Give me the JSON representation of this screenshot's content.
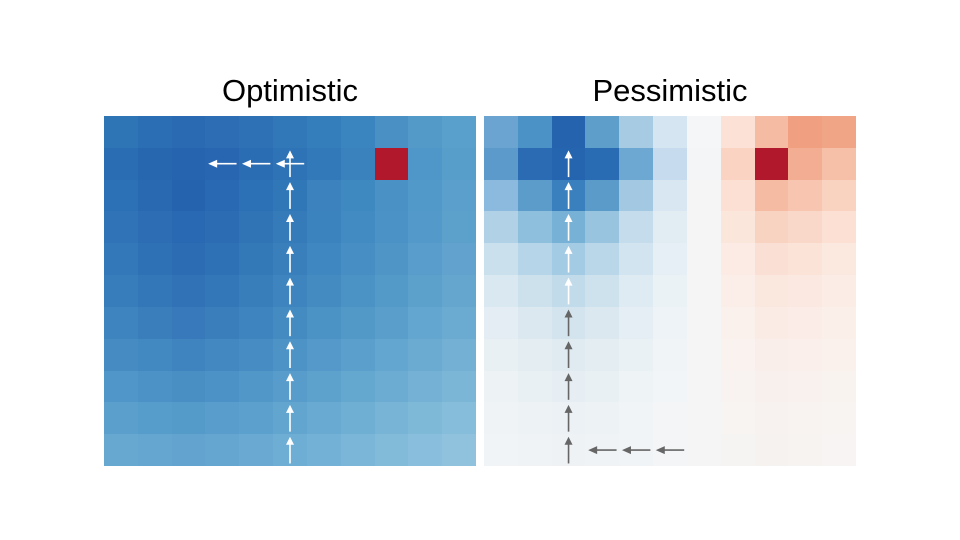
{
  "titles": {
    "left": "Optimistic",
    "right": "Pessimistic"
  },
  "grid": {
    "rows": 11,
    "cols": 11
  },
  "colors": {
    "goal": "#b2182b",
    "arrow_white": "#ffffff",
    "arrow_gray": "#666666"
  },
  "panels": [
    {
      "id": "optimistic",
      "goal_cell": [
        1,
        8
      ],
      "cells": [
        [
          "#2e75b6",
          "#2b6eb3",
          "#2a6ab2",
          "#2c6db3",
          "#2e72b5",
          "#3078b8",
          "#347ebb",
          "#3a85bf",
          "#4a90c5",
          "#539ac9",
          "#5aa0cc"
        ],
        [
          "#2a6db3",
          "#2767b0",
          "#2664af",
          "#2866b1",
          "#2b6db3",
          "#2e73b6",
          "#3279ba",
          "#3a82be",
          "#b2182b",
          "#4f97c8",
          "#589ecb"
        ],
        [
          "#2c70b5",
          "#2869b2",
          "#2563af",
          "#2968b2",
          "#2c70b5",
          "#3077b8",
          "#3b82be",
          "#3f89c1",
          "#4a91c6",
          "#5099c9",
          "#5b9fcc"
        ],
        [
          "#3073b6",
          "#2c6db3",
          "#2968b2",
          "#2c6cb3",
          "#3074b6",
          "#357bb9",
          "#3b83be",
          "#428bc2",
          "#4b93c6",
          "#5399c9",
          "#5ca0cc"
        ],
        [
          "#3378b8",
          "#2f71b5",
          "#2c6cb3",
          "#2f71b5",
          "#3379b8",
          "#397fbc",
          "#3f87c0",
          "#468ec3",
          "#4f96c7",
          "#589dcb",
          "#61a3ce"
        ],
        [
          "#387dbb",
          "#3477b8",
          "#3172b6",
          "#3477b8",
          "#387ebb",
          "#3e84be",
          "#448bc1",
          "#4b92c5",
          "#549ac9",
          "#5ca0cc",
          "#65a6cf"
        ],
        [
          "#3e84bf",
          "#3a7ebc",
          "#3779ba",
          "#3a7ebc",
          "#3e85bf",
          "#448bc2",
          "#4b92c5",
          "#5299c8",
          "#5a9fcb",
          "#63a6cf",
          "#6cabd1"
        ],
        [
          "#468cc3",
          "#4288c1",
          "#3f84bf",
          "#4388c1",
          "#478dc3",
          "#4d93c6",
          "#5499c9",
          "#5b9fcc",
          "#63a6cf",
          "#6cabd1",
          "#74b0d4"
        ],
        [
          "#5096c8",
          "#4c92c6",
          "#4a8fc4",
          "#4d92c6",
          "#5197c8",
          "#579cca",
          "#5da2cd",
          "#64a7cf",
          "#6cacd2",
          "#74b1d4",
          "#7cb6d7"
        ],
        [
          "#5ba0cd",
          "#579dcb",
          "#559bca",
          "#589dcb",
          "#5ca1cd",
          "#62a6cf",
          "#68aad1",
          "#6fafd4",
          "#77b4d6",
          "#7fb9d8",
          "#86bdda"
        ],
        [
          "#67a8d1",
          "#64a6d0",
          "#62a4cf",
          "#65a6d0",
          "#69a9d2",
          "#6eadd4",
          "#74b1d6",
          "#7bb6d8",
          "#82bada",
          "#89bedc",
          "#90c2de"
        ]
      ]
    },
    {
      "id": "pessimistic",
      "goal_cell": [
        1,
        8
      ],
      "cells": [
        [
          "#6ba4d0",
          "#4b92c7",
          "#2563af",
          "#5d9ecb",
          "#a6cbe3",
          "#d5e5f1",
          "#f5f6f8",
          "#fbe1d6",
          "#f5bca3",
          "#f0a081",
          "#f1a587"
        ],
        [
          "#5b9aca",
          "#2b6bb3",
          "#2565b0",
          "#2a6cb3",
          "#6ca8d1",
          "#c6dcee",
          "#f4f5f7",
          "#fad3c3",
          "#b2182b",
          "#f3ad92",
          "#f6c0a8"
        ],
        [
          "#8cbade",
          "#5c9ccb",
          "#3b80be",
          "#5a9bca",
          "#a3c8e2",
          "#d8e7f1",
          "#f5f5f6",
          "#fce0d4",
          "#f6bca3",
          "#f8c6b0",
          "#fad2c0"
        ],
        [
          "#b0d1e6",
          "#8ebfdd",
          "#78b1d6",
          "#99c4e0",
          "#c4dcec",
          "#e1ecf3",
          "#f5f5f6",
          "#fbe6dc",
          "#f9d3c2",
          "#fad8c9",
          "#fbe0d3"
        ],
        [
          "#cbe0ed",
          "#b6d5e8",
          "#a3cbe3",
          "#b9d7e9",
          "#d2e4ef",
          "#e6eff5",
          "#f5f5f6",
          "#fbebe4",
          "#fae0d4",
          "#fbe3d8",
          "#fbe8df"
        ],
        [
          "#dae8f1",
          "#cde1ed",
          "#c1dbea",
          "#cde2ed",
          "#deebf2",
          "#ebf2f6",
          "#f5f5f6",
          "#fbeee9",
          "#fae7de",
          "#fbe9e1",
          "#fbece6"
        ],
        [
          "#e3edf3",
          "#dbe8f0",
          "#d4e4ee",
          "#dbe8f0",
          "#e5eef4",
          "#eef3f7",
          "#f5f5f6",
          "#faf0ec",
          "#faebe5",
          "#fbece7",
          "#fbefea"
        ],
        [
          "#e9f0f4",
          "#e4edf2",
          "#dfeaf1",
          "#e4edf2",
          "#eaf1f5",
          "#f0f4f7",
          "#f5f5f6",
          "#f9f2ef",
          "#f9eee9",
          "#faefeb",
          "#faf1ed"
        ],
        [
          "#edf2f5",
          "#e9f0f4",
          "#e6eef3",
          "#e9f0f4",
          "#eef3f6",
          "#f2f5f7",
          "#f5f5f6",
          "#f8f3f1",
          "#f8f0ec",
          "#f9f1ee",
          "#f9f3f0"
        ],
        [
          "#eff3f6",
          "#edf2f5",
          "#ebf1f4",
          "#edf2f5",
          "#f0f4f6",
          "#f3f5f7",
          "#f5f5f6",
          "#f7f4f2",
          "#f7f1ef",
          "#f8f2f0",
          "#f8f4f2"
        ],
        [
          "#f0f4f6",
          "#eff3f5",
          "#eef2f5",
          "#eff3f5",
          "#f1f4f6",
          "#f3f5f7",
          "#f5f5f6",
          "#f6f4f3",
          "#f6f2f0",
          "#f7f3f1",
          "#f7f4f3"
        ]
      ],
      "arrows": [
        {
          "row": 1,
          "col": 2,
          "dir": "up",
          "color": "white"
        },
        {
          "row": 2,
          "col": 2,
          "dir": "up",
          "color": "white"
        },
        {
          "row": 3,
          "col": 2,
          "dir": "up",
          "color": "white"
        },
        {
          "row": 4,
          "col": 2,
          "dir": "up",
          "color": "white"
        },
        {
          "row": 5,
          "col": 2,
          "dir": "up",
          "color": "white"
        },
        {
          "row": 6,
          "col": 2,
          "dir": "up",
          "color": "gray"
        },
        {
          "row": 7,
          "col": 2,
          "dir": "up",
          "color": "gray"
        },
        {
          "row": 8,
          "col": 2,
          "dir": "up",
          "color": "gray"
        },
        {
          "row": 9,
          "col": 2,
          "dir": "up",
          "color": "gray"
        },
        {
          "row": 10,
          "col": 2,
          "dir": "up",
          "color": "gray"
        },
        {
          "row": 10,
          "col": 3,
          "dir": "left",
          "color": "gray"
        },
        {
          "row": 10,
          "col": 4,
          "dir": "left",
          "color": "gray"
        },
        {
          "row": 10,
          "col": 5,
          "dir": "left",
          "color": "gray"
        }
      ]
    }
  ],
  "optimistic_arrows": [
    {
      "row": 1,
      "col": 3,
      "dir": "left",
      "color": "white"
    },
    {
      "row": 1,
      "col": 4,
      "dir": "left",
      "color": "white"
    },
    {
      "row": 1,
      "col": 5,
      "dir": "left",
      "color": "white"
    },
    {
      "row": 1,
      "col": 5,
      "dir": "up",
      "color": "white"
    },
    {
      "row": 2,
      "col": 5,
      "dir": "up",
      "color": "white"
    },
    {
      "row": 3,
      "col": 5,
      "dir": "up",
      "color": "white"
    },
    {
      "row": 4,
      "col": 5,
      "dir": "up",
      "color": "white"
    },
    {
      "row": 5,
      "col": 5,
      "dir": "up",
      "color": "white"
    },
    {
      "row": 6,
      "col": 5,
      "dir": "up",
      "color": "white"
    },
    {
      "row": 7,
      "col": 5,
      "dir": "up",
      "color": "white"
    },
    {
      "row": 8,
      "col": 5,
      "dir": "up",
      "color": "white"
    },
    {
      "row": 9,
      "col": 5,
      "dir": "up",
      "color": "white"
    },
    {
      "row": 10,
      "col": 5,
      "dir": "up",
      "color": "white"
    }
  ]
}
